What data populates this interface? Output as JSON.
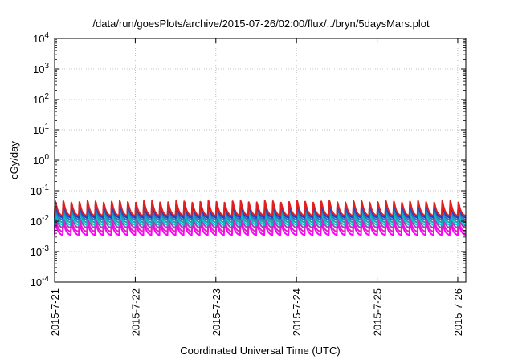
{
  "chart_data": {
    "type": "line",
    "title": "/data/run/goesPlots/archive/2015-07-26/02:00/flux/../bryn/5daysMars.plot",
    "xlabel": "Coordinated Universal Time (UTC)",
    "ylabel": "cGy/day",
    "yscale": "log",
    "ylim": [
      0.0001,
      10000
    ],
    "xlim_days": [
      0,
      5.1
    ],
    "x_ticks": [
      {
        "label": "2015-7-21",
        "day": 0
      },
      {
        "label": "2015-7-22",
        "day": 1
      },
      {
        "label": "2015-7-23",
        "day": 2
      },
      {
        "label": "2015-7-24",
        "day": 3
      },
      {
        "label": "2015-7-25",
        "day": 4
      },
      {
        "label": "2015-7-26",
        "day": 5
      }
    ],
    "y_ticks": [
      {
        "base": "10",
        "exp": "-4",
        "value": 0.0001
      },
      {
        "base": "10",
        "exp": "-3",
        "value": 0.001
      },
      {
        "base": "10",
        "exp": "-2",
        "value": 0.01
      },
      {
        "base": "10",
        "exp": "-1",
        "value": 0.1
      },
      {
        "base": "10",
        "exp": "0",
        "value": 1
      },
      {
        "base": "10",
        "exp": "1",
        "value": 10
      },
      {
        "base": "10",
        "exp": "2",
        "value": 100
      },
      {
        "base": "10",
        "exp": "3",
        "value": 1000
      },
      {
        "base": "10",
        "exp": "4",
        "value": 10000
      }
    ],
    "grid": true,
    "legend": "none",
    "cycles_per_day": 10,
    "series": [
      {
        "color": "#ff00ff",
        "peak": 0.01,
        "trough": 0.0035
      },
      {
        "color": "#e020c0",
        "peak": 0.013,
        "trough": 0.0045
      },
      {
        "color": "#a040c0",
        "peak": 0.02,
        "trough": 0.006
      },
      {
        "color": "#00c8c8",
        "peak": 0.022,
        "trough": 0.0075
      },
      {
        "color": "#20a0b0",
        "peak": 0.03,
        "trough": 0.009
      },
      {
        "color": "#3070d0",
        "peak": 0.035,
        "trough": 0.011
      },
      {
        "color": "#2040c0",
        "peak": 0.042,
        "trough": 0.013
      },
      {
        "color": "#e02020",
        "peak": 0.05,
        "trough": 0.015
      }
    ]
  }
}
